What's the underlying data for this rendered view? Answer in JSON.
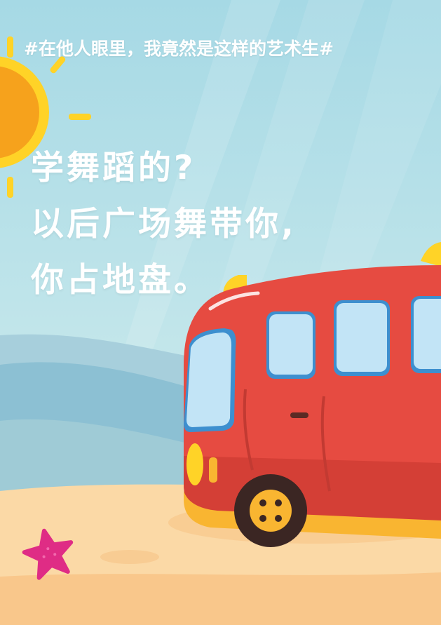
{
  "hashtag": "#在他人眼里，我竟然是这样的艺术生#",
  "headline": {
    "lines": [
      "学舞蹈的?",
      "以后广场舞带你,",
      "你占地盘。"
    ]
  },
  "colors": {
    "sky_top": "#a9dbe6",
    "sky_bottom": "#d4eef0",
    "sea": "#8fc4d5",
    "sand": "#fbd8a4",
    "sand_dark": "#f7c489",
    "sun": "#f6a21c",
    "sun_ray": "#ffd327",
    "bus_body": "#e64b41",
    "bus_trim": "#f9b531",
    "window": "#bfe3f5",
    "starfish": "#df2c85"
  },
  "icons": [
    "sun-icon",
    "bus-illustration",
    "starfish-icon"
  ]
}
